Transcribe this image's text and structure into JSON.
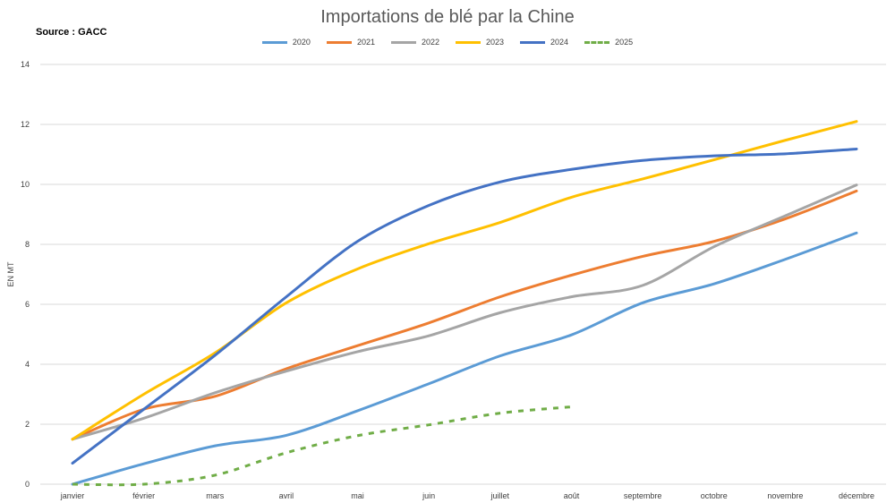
{
  "chart_data": {
    "type": "line",
    "title": "Importations de blé par la Chine",
    "source": "Source : GACC",
    "ylabel": "EN MT",
    "xlabel": "",
    "ylim": [
      0,
      14
    ],
    "yticks": [
      0,
      2,
      4,
      6,
      8,
      10,
      12,
      14
    ],
    "grid": true,
    "legend_position": "top",
    "categories": [
      "janvier",
      "février",
      "mars",
      "avril",
      "mai",
      "juin",
      "juillet",
      "août",
      "septembre",
      "octobre",
      "novembre",
      "décembre"
    ],
    "series": [
      {
        "name": "2020",
        "color": "#5B9BD5",
        "dash": false,
        "values": [
          0,
          0.68,
          1.28,
          1.63,
          2.45,
          3.35,
          4.28,
          4.98,
          6.05,
          6.68,
          7.5,
          8.38
        ]
      },
      {
        "name": "2021",
        "color": "#ED7D31",
        "dash": false,
        "values": [
          1.5,
          2.5,
          2.93,
          3.85,
          4.62,
          5.38,
          6.25,
          6.97,
          7.6,
          8.1,
          8.85,
          9.78
        ]
      },
      {
        "name": "2022",
        "color": "#A5A5A5",
        "dash": false,
        "values": [
          1.5,
          2.2,
          3.05,
          3.77,
          4.42,
          4.95,
          5.72,
          6.25,
          6.63,
          7.92,
          8.95,
          9.98
        ]
      },
      {
        "name": "2023",
        "color": "#FFC000",
        "dash": false,
        "values": [
          1.5,
          3.0,
          4.38,
          6.05,
          7.18,
          8.02,
          8.73,
          9.57,
          10.18,
          10.82,
          11.47,
          12.1
        ]
      },
      {
        "name": "2024",
        "color": "#4472C4",
        "dash": false,
        "values": [
          0.7,
          2.5,
          4.3,
          6.25,
          8.1,
          9.3,
          10.08,
          10.5,
          10.8,
          10.95,
          11.02,
          11.18
        ]
      },
      {
        "name": "2025",
        "color": "#70AD47",
        "dash": true,
        "values": [
          0,
          0,
          0.3,
          1.05,
          1.62,
          1.98,
          2.37,
          2.58,
          null,
          null,
          null,
          null
        ]
      }
    ]
  }
}
